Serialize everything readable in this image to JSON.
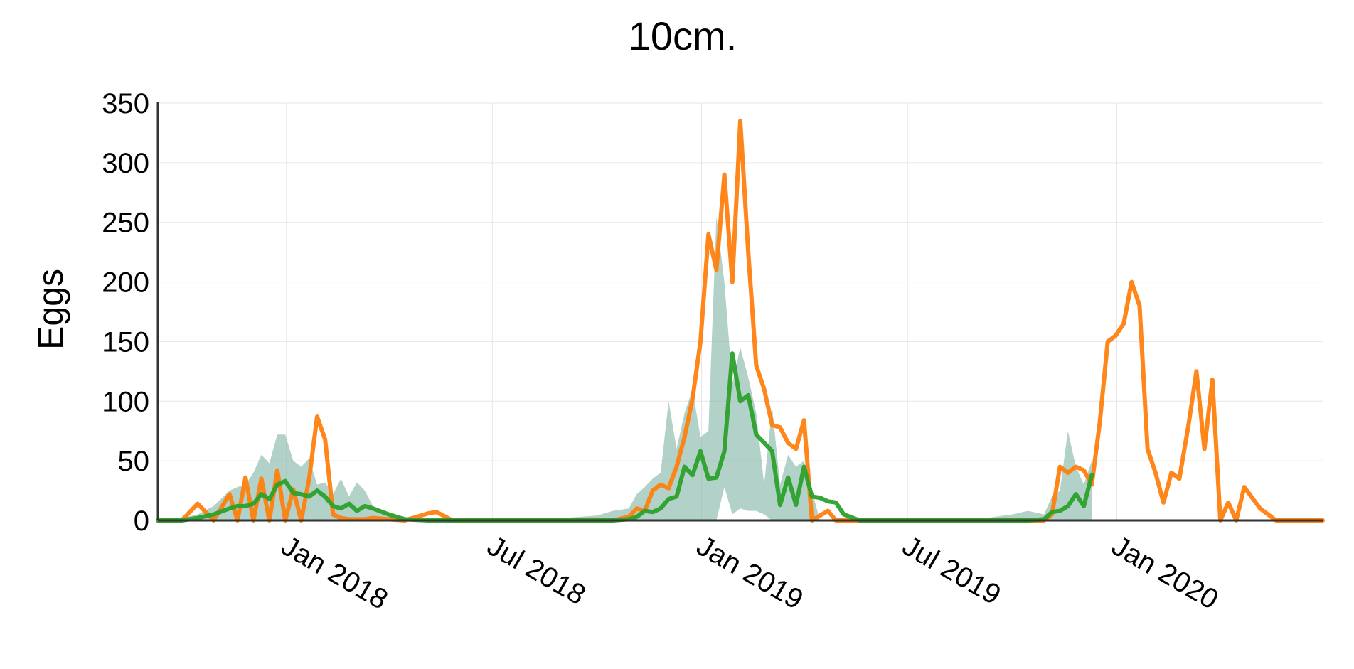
{
  "chart_data": {
    "type": "line",
    "title": "10cm.",
    "xlabel": "",
    "ylabel": "Eggs",
    "ylim": [
      0,
      350
    ],
    "xlim": [
      "2017-09-10",
      "2020-06-30"
    ],
    "yticks": [
      0,
      50,
      100,
      150,
      200,
      250,
      300,
      350
    ],
    "xticks": [
      {
        "date": "2018-01-01",
        "label": "Jan 2018"
      },
      {
        "date": "2018-07-01",
        "label": "Jul 2018"
      },
      {
        "date": "2019-01-01",
        "label": "Jan 2019"
      },
      {
        "date": "2019-07-01",
        "label": "Jul 2019"
      },
      {
        "date": "2020-01-01",
        "label": "Jan 2020"
      }
    ],
    "grid": true,
    "legend": null,
    "colors": {
      "observed": "#ff7f0e",
      "predicted": "#2ca02c",
      "band": "#7fb3a3"
    },
    "series": [
      {
        "kind": "observed",
        "color": "#ff7f0e",
        "x": [
          "2017-09-10",
          "2017-10-01",
          "2017-10-15",
          "2017-10-29",
          "2017-11-12",
          "2017-11-19",
          "2017-11-26",
          "2017-12-03",
          "2017-12-10",
          "2017-12-17",
          "2017-12-24",
          "2017-12-31",
          "2018-01-07",
          "2018-01-14",
          "2018-01-21",
          "2018-01-28",
          "2018-02-04",
          "2018-02-11",
          "2018-02-18",
          "2018-02-25",
          "2018-03-04",
          "2018-03-11",
          "2018-03-18",
          "2018-04-01",
          "2018-04-15",
          "2018-05-06",
          "2018-05-13",
          "2018-05-27",
          "2018-06-10",
          "2018-07-01",
          "2018-08-01",
          "2018-09-01",
          "2018-10-01",
          "2018-10-15",
          "2018-10-29",
          "2018-11-05",
          "2018-11-12",
          "2018-11-19",
          "2018-11-26",
          "2018-12-03",
          "2018-12-10",
          "2018-12-17",
          "2018-12-24",
          "2018-12-31",
          "2019-01-07",
          "2019-01-14",
          "2019-01-21",
          "2019-01-28",
          "2019-02-04",
          "2019-02-11",
          "2019-02-18",
          "2019-02-25",
          "2019-03-04",
          "2019-03-11",
          "2019-03-18",
          "2019-03-25",
          "2019-04-01",
          "2019-04-08",
          "2019-04-15",
          "2019-04-22",
          "2019-04-29",
          "2019-05-06",
          "2019-05-13",
          "2019-05-20",
          "2019-06-01",
          "2019-07-01",
          "2019-08-01",
          "2019-09-01",
          "2019-10-01",
          "2019-10-15",
          "2019-10-29",
          "2019-11-05",
          "2019-11-12",
          "2019-11-19",
          "2019-11-26",
          "2019-12-03",
          "2019-12-10",
          "2019-12-17",
          "2019-12-24",
          "2019-12-31",
          "2020-01-07",
          "2020-01-14",
          "2020-01-21",
          "2020-01-28",
          "2020-02-04",
          "2020-02-11",
          "2020-02-18",
          "2020-02-25",
          "2020-03-04",
          "2020-03-11",
          "2020-03-18",
          "2020-03-25",
          "2020-04-01",
          "2020-04-08",
          "2020-04-15",
          "2020-04-22",
          "2020-05-06",
          "2020-05-20",
          "2020-06-10",
          "2020-06-30"
        ],
        "y": [
          0,
          0,
          14,
          0,
          22,
          0,
          36,
          0,
          35,
          0,
          42,
          0,
          26,
          0,
          35,
          87,
          68,
          5,
          2,
          1,
          1,
          1,
          2,
          1,
          0,
          6,
          7,
          0,
          0,
          0,
          0,
          0,
          0,
          0,
          3,
          10,
          8,
          25,
          30,
          27,
          45,
          70,
          102,
          150,
          240,
          210,
          290,
          200,
          335,
          225,
          130,
          110,
          80,
          78,
          65,
          60,
          84,
          0,
          4,
          8,
          0,
          0,
          0,
          0,
          0,
          0,
          0,
          0,
          0,
          0,
          0,
          5,
          45,
          40,
          45,
          42,
          30,
          82,
          150,
          155,
          165,
          200,
          180,
          60,
          40,
          15,
          40,
          35,
          80,
          125,
          60,
          118,
          0,
          15,
          0,
          28,
          10,
          0,
          0,
          0
        ]
      },
      {
        "kind": "predicted",
        "color": "#2ca02c",
        "x": [
          "2017-09-10",
          "2017-10-01",
          "2017-10-15",
          "2017-10-29",
          "2017-11-12",
          "2017-11-19",
          "2017-11-26",
          "2017-12-03",
          "2017-12-10",
          "2017-12-17",
          "2017-12-24",
          "2017-12-31",
          "2018-01-07",
          "2018-01-14",
          "2018-01-21",
          "2018-01-28",
          "2018-02-04",
          "2018-02-11",
          "2018-02-18",
          "2018-02-25",
          "2018-03-04",
          "2018-03-11",
          "2018-03-18",
          "2018-04-01",
          "2018-04-15",
          "2018-05-06",
          "2018-06-01",
          "2018-07-01",
          "2018-08-01",
          "2018-09-01",
          "2018-10-01",
          "2018-10-15",
          "2018-10-29",
          "2018-11-05",
          "2018-11-12",
          "2018-11-19",
          "2018-11-26",
          "2018-12-03",
          "2018-12-10",
          "2018-12-17",
          "2018-12-24",
          "2018-12-31",
          "2019-01-07",
          "2019-01-14",
          "2019-01-21",
          "2019-01-28",
          "2019-02-04",
          "2019-02-11",
          "2019-02-18",
          "2019-02-25",
          "2019-03-04",
          "2019-03-11",
          "2019-03-18",
          "2019-03-25",
          "2019-04-01",
          "2019-04-08",
          "2019-04-15",
          "2019-04-22",
          "2019-04-29",
          "2019-05-06",
          "2019-05-20",
          "2019-06-01",
          "2019-07-01",
          "2019-08-01",
          "2019-09-01",
          "2019-10-01",
          "2019-10-15",
          "2019-10-29",
          "2019-11-05",
          "2019-11-12",
          "2019-11-19",
          "2019-11-26",
          "2019-12-03",
          "2019-12-10"
        ],
        "y": [
          0,
          0,
          2,
          5,
          10,
          12,
          12,
          14,
          22,
          18,
          30,
          33,
          23,
          22,
          20,
          25,
          20,
          12,
          10,
          14,
          8,
          12,
          10,
          5,
          1,
          0,
          0,
          0,
          0,
          0,
          0,
          0,
          1,
          3,
          8,
          7,
          10,
          18,
          20,
          45,
          38,
          58,
          35,
          36,
          58,
          140,
          100,
          105,
          72,
          65,
          58,
          13,
          36,
          13,
          45,
          20,
          19,
          16,
          15,
          5,
          0,
          0,
          0,
          0,
          0,
          0,
          0,
          1,
          7,
          8,
          12,
          22,
          12,
          38
        ]
      }
    ],
    "band": {
      "x": [
        "2017-09-10",
        "2017-10-01",
        "2017-10-15",
        "2017-10-29",
        "2017-11-12",
        "2017-11-19",
        "2017-11-26",
        "2017-12-03",
        "2017-12-10",
        "2017-12-17",
        "2017-12-24",
        "2017-12-31",
        "2018-01-07",
        "2018-01-14",
        "2018-01-21",
        "2018-01-28",
        "2018-02-04",
        "2018-02-11",
        "2018-02-18",
        "2018-02-25",
        "2018-03-04",
        "2018-03-11",
        "2018-03-18",
        "2018-04-01",
        "2018-04-15",
        "2018-05-06",
        "2018-06-01",
        "2018-07-01",
        "2018-08-01",
        "2018-09-01",
        "2018-10-01",
        "2018-10-15",
        "2018-10-29",
        "2018-11-05",
        "2018-11-12",
        "2018-11-19",
        "2018-11-26",
        "2018-12-03",
        "2018-12-10",
        "2018-12-17",
        "2018-12-24",
        "2018-12-31",
        "2019-01-07",
        "2019-01-14",
        "2019-01-21",
        "2019-01-28",
        "2019-02-04",
        "2019-02-11",
        "2019-02-18",
        "2019-02-25",
        "2019-03-04",
        "2019-03-11",
        "2019-03-18",
        "2019-03-25",
        "2019-04-01",
        "2019-04-08",
        "2019-04-15",
        "2019-04-22",
        "2019-04-29",
        "2019-05-06",
        "2019-05-20",
        "2019-06-01",
        "2019-07-01",
        "2019-08-01",
        "2019-09-01",
        "2019-10-01",
        "2019-10-15",
        "2019-10-29",
        "2019-11-05",
        "2019-11-12",
        "2019-11-19",
        "2019-11-26",
        "2019-12-03",
        "2019-12-10"
      ],
      "upper": [
        1,
        2,
        5,
        12,
        25,
        28,
        30,
        40,
        55,
        48,
        72,
        72,
        50,
        45,
        52,
        30,
        32,
        22,
        35,
        20,
        32,
        25,
        12,
        5,
        2,
        1,
        1,
        1,
        1,
        2,
        4,
        8,
        10,
        22,
        28,
        35,
        40,
        100,
        60,
        90,
        110,
        70,
        75,
        255,
        200,
        115,
        145,
        120,
        90,
        30,
        95,
        30,
        55,
        45,
        50,
        25,
        0,
        0,
        0,
        0,
        0,
        0,
        0,
        0,
        1,
        5,
        8,
        5,
        20,
        25,
        75,
        45,
        30,
        50
      ],
      "lower": [
        0,
        0,
        0,
        0,
        0,
        0,
        0,
        0,
        0,
        0,
        0,
        0,
        0,
        0,
        0,
        0,
        0,
        0,
        0,
        0,
        0,
        0,
        0,
        0,
        0,
        0,
        0,
        0,
        0,
        0,
        0,
        0,
        0,
        0,
        0,
        0,
        0,
        0,
        0,
        0,
        0,
        0,
        0,
        0,
        28,
        5,
        10,
        8,
        8,
        5,
        0,
        0,
        0,
        0,
        0,
        0,
        0,
        0,
        0,
        0,
        0,
        0,
        0,
        0,
        0,
        0,
        0,
        0,
        0,
        0,
        0,
        0,
        0,
        0
      ]
    }
  }
}
